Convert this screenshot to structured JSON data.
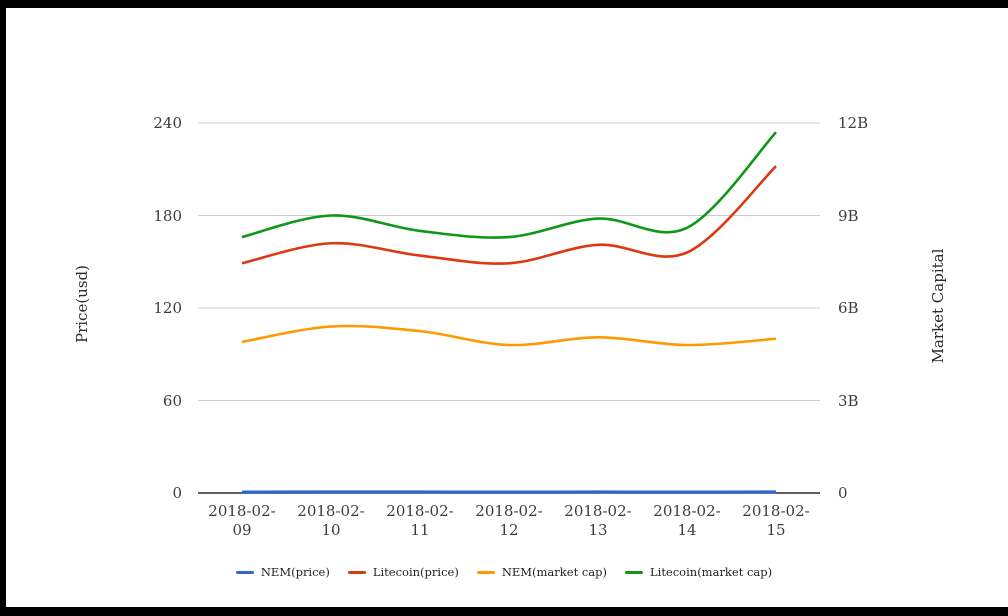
{
  "window": {
    "frame_color": "#000000",
    "background_color": "#ffffff"
  },
  "chart_data": {
    "type": "line",
    "curve": "smooth",
    "title": "",
    "x": [
      "2018-02-09",
      "2018-02-10",
      "2018-02-11",
      "2018-02-12",
      "2018-02-13",
      "2018-02-14",
      "2018-02-15"
    ],
    "series": [
      {
        "name": "NEM(price)",
        "axis": "left",
        "color": "#3366cc",
        "values": [
          0.5,
          0.6,
          0.6,
          0.5,
          0.6,
          0.5,
          0.6
        ]
      },
      {
        "name": "Litecoin(price)",
        "axis": "left",
        "color": "#dc3912",
        "values": [
          149,
          162,
          154,
          149,
          161,
          156,
          212
        ]
      },
      {
        "name": "NEM(market cap)",
        "axis": "right",
        "color": "#ff9900",
        "unit": "B",
        "values": [
          4.9,
          5.4,
          5.25,
          4.8,
          5.05,
          4.8,
          5.0
        ]
      },
      {
        "name": "Litecoin(market cap)",
        "axis": "right",
        "color": "#109618",
        "unit": "B",
        "values": [
          8.3,
          9.0,
          8.5,
          8.3,
          8.9,
          8.6,
          11.7
        ]
      }
    ],
    "left_axis": {
      "title": "Price(usd)",
      "ticks": [
        0,
        60,
        120,
        180,
        240
      ],
      "tick_labels": [
        "0",
        "60",
        "120",
        "180",
        "240"
      ],
      "range": [
        0,
        240
      ]
    },
    "right_axis": {
      "title": "Market Capital",
      "ticks": [
        0,
        3,
        6,
        9,
        12
      ],
      "tick_labels": [
        "0",
        "3B",
        "6B",
        "9B",
        "12B"
      ],
      "range_billions": [
        0,
        12
      ]
    },
    "legend": {
      "position": "bottom",
      "entries": [
        "NEM(price)",
        "Litecoin(price)",
        "NEM(market cap)",
        "Litecoin(market cap)"
      ]
    },
    "grid": true,
    "gridline_color": "#cccccc",
    "axis_line_color": "#000000",
    "tick_text_color": "#3d3d3d"
  }
}
